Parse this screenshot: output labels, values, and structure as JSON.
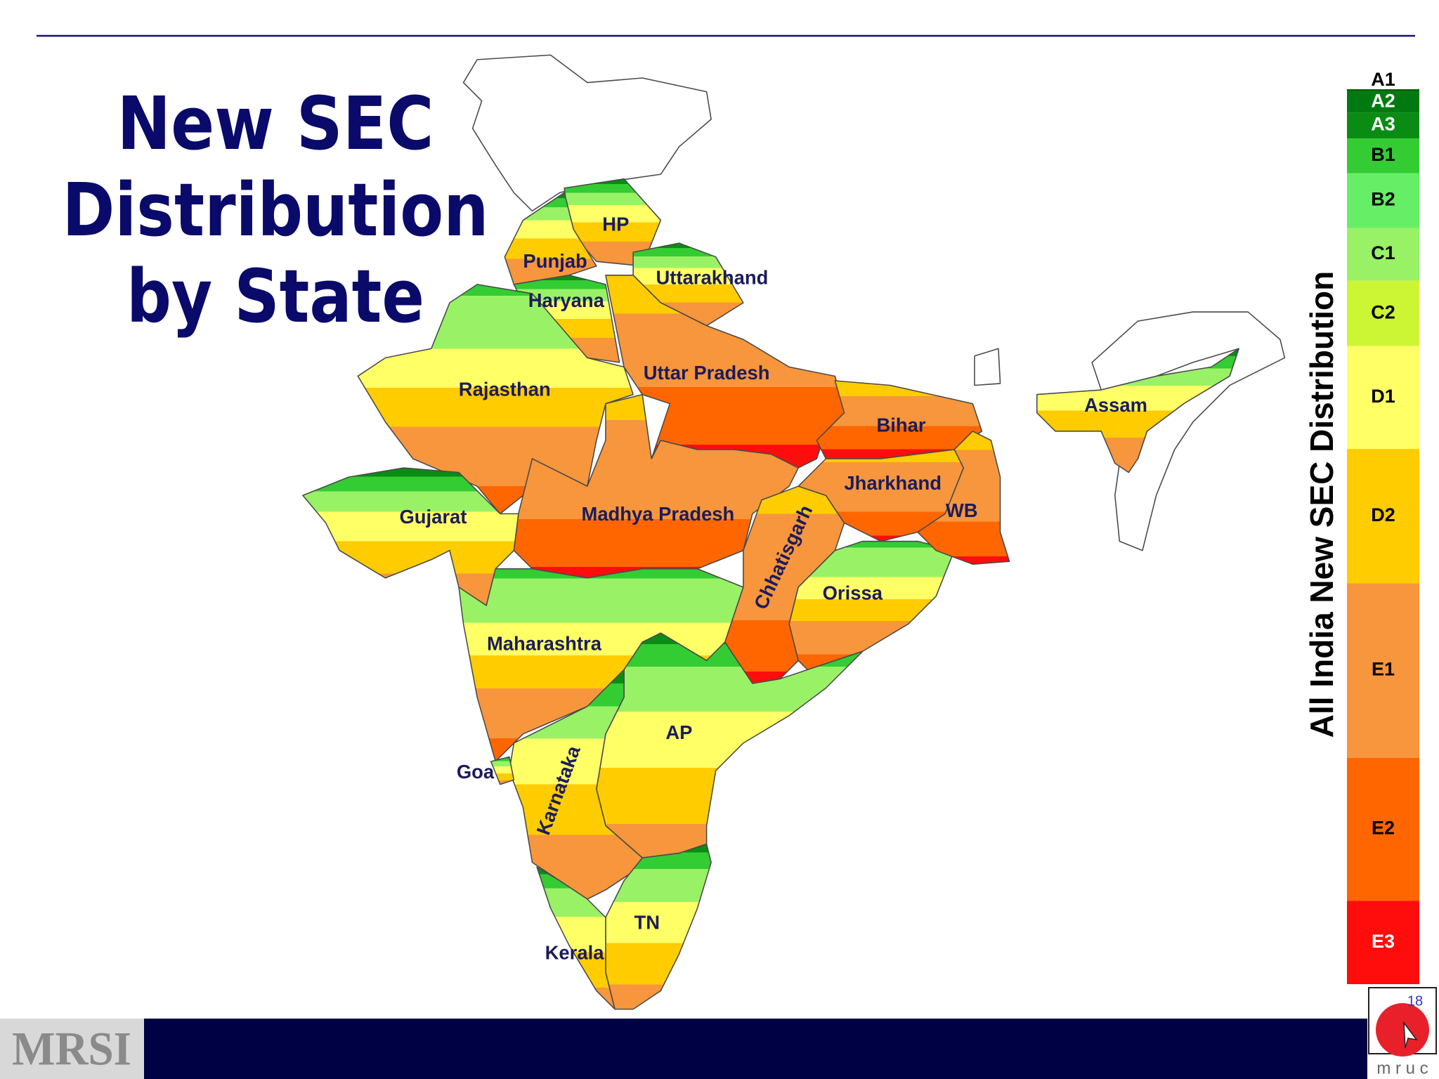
{
  "header": {
    "title": [
      "New SEC",
      "Distribution",
      "by State"
    ]
  },
  "map": {
    "states": [
      "HP",
      "Punjab",
      "Haryana",
      "Uttarakhand",
      "Rajasthan",
      "Uttar Pradesh",
      "Bihar",
      "Assam",
      "Jharkhand",
      "WB",
      "Gujarat",
      "Madhya Pradesh",
      "Chhatisgarh",
      "Orissa",
      "Maharashtra",
      "AP",
      "Goa",
      "Karnataka",
      "TN",
      "Kerala"
    ]
  },
  "legend": {
    "title": "All India New SEC Distribution",
    "grades": [
      {
        "label": "A1",
        "share": 0.3,
        "color": "#006400"
      },
      {
        "label": "A2",
        "share": 2.3,
        "color": "#007a10"
      },
      {
        "label": "A3",
        "share": 2.9,
        "color": "#0a8c14"
      },
      {
        "label": "B1",
        "share": 3.9,
        "color": "#33cc33"
      },
      {
        "label": "B2",
        "share": 6.1,
        "color": "#66ee66"
      },
      {
        "label": "C1",
        "share": 5.9,
        "color": "#99f266"
      },
      {
        "label": "C2",
        "share": 7.3,
        "color": "#ccf533"
      },
      {
        "label": "D1",
        "share": 11.5,
        "color": "#ffff66"
      },
      {
        "label": "D2",
        "share": 15.0,
        "color": "#ffcc00"
      },
      {
        "label": "E1",
        "share": 19.5,
        "color": "#f7963c"
      },
      {
        "label": "E2",
        "share": 16.0,
        "color": "#ff6600"
      },
      {
        "label": "E3",
        "share": 9.3,
        "color": "#ff0d0d"
      }
    ]
  },
  "footer": {
    "logo_left": "MRSI",
    "logo_right": "m r u c",
    "page_number": "18"
  }
}
